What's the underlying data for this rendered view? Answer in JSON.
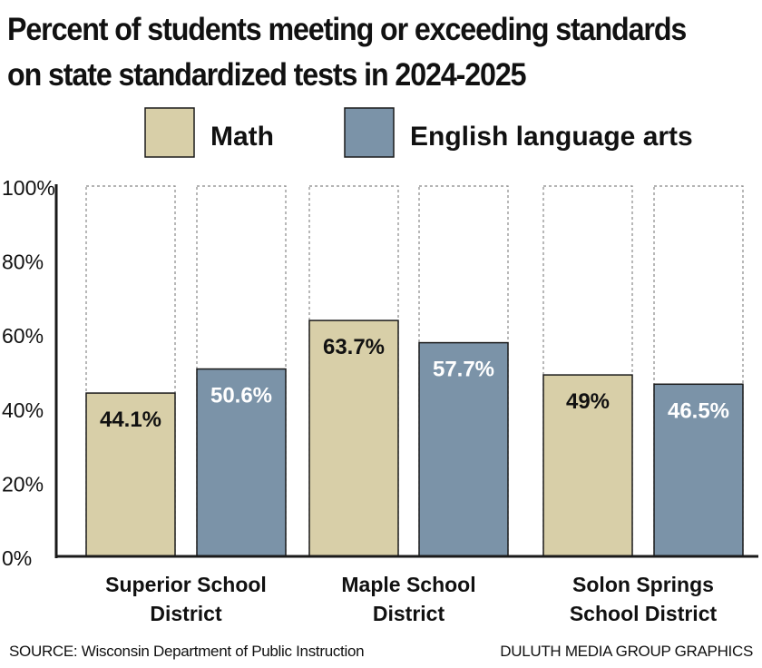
{
  "title_line1": "Percent of students meeting or exceeding standards",
  "title_line2": "on state standardized tests in 2024-2025",
  "source": "SOURCE: Wisconsin Department of Public Instruction",
  "credit": "DULUTH MEDIA GROUP GRAPHICS",
  "colors": {
    "math": "#d8cfa8",
    "ela": "#7b93a8",
    "border": "#1a1a1a",
    "dotted": "#888888"
  },
  "chart_data": {
    "type": "bar",
    "title": "Percent of students meeting or exceeding standards on state standardized tests in 2024-2025",
    "categories": [
      [
        "Superior School",
        "District"
      ],
      [
        "Maple School",
        "District"
      ],
      [
        "Solon Springs",
        "School District"
      ]
    ],
    "series": [
      {
        "name": "Math",
        "values": [
          44.1,
          63.7,
          49
        ],
        "labels": [
          "44.1%",
          "63.7%",
          "49%"
        ]
      },
      {
        "name": "English language arts",
        "values": [
          50.6,
          57.7,
          46.5
        ],
        "labels": [
          "50.6%",
          "57.7%",
          "46.5%"
        ]
      }
    ],
    "yticks": [
      "0%",
      "20%",
      "40%",
      "60%",
      "80%",
      "100%"
    ],
    "ylim": [
      0,
      100
    ],
    "legend_position": "top",
    "grid": false
  }
}
